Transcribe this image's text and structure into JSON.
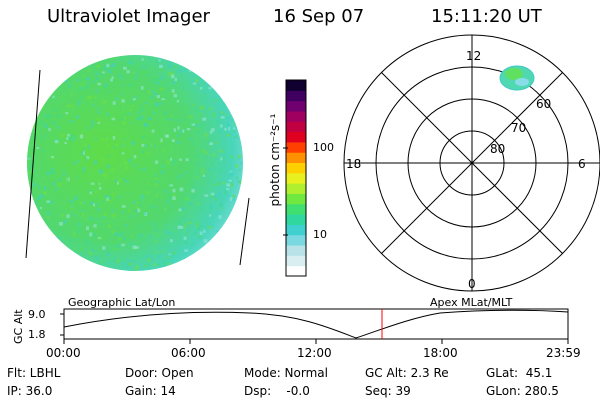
{
  "header": {
    "instrument": "Ultraviolet Imager",
    "date": "16 Sep 07",
    "time": "15:11:20 UT"
  },
  "colorbar": {
    "label": "photon cm⁻²s⁻¹",
    "ticks": [
      "100",
      "10"
    ],
    "colors": [
      "#ffffff",
      "#d8eef0",
      "#b8e2e8",
      "#7ad8e0",
      "#40d0d0",
      "#30d8a0",
      "#40e070",
      "#70e840",
      "#b0ee30",
      "#e8f020",
      "#ffd000",
      "#ff9000",
      "#ff4000",
      "#e00020",
      "#c00040",
      "#a00060",
      "#700070",
      "#400060",
      "#100030"
    ]
  },
  "polar_plot": {
    "mlt_labels": [
      "12",
      "18",
      "6",
      "0"
    ],
    "lat_labels": [
      "60",
      "70",
      "80"
    ]
  },
  "timeline": {
    "y_axis_label": "GC Alt",
    "y_ticks": [
      "9.0",
      "1.8"
    ],
    "left_label": "Geographic Lat/Lon",
    "right_label": "Apex MLat/MLT",
    "x_ticks": [
      "00:00",
      "06:00",
      "12:00",
      "18:00",
      "23:59"
    ],
    "marker_color": "#ff0000"
  },
  "status": {
    "flt": "Flt: LBHL",
    "ip": "IP: 36.0",
    "door": "Door: Open",
    "gain": "Gain: 14",
    "mode": "Mode: Normal",
    "dsp": "Dsp:    -0.0",
    "gc_alt": "GC Alt: 2.3 Re",
    "seq": "Seq: 39",
    "glat": "GLat:  45.1",
    "glon": "GLon: 280.5"
  }
}
